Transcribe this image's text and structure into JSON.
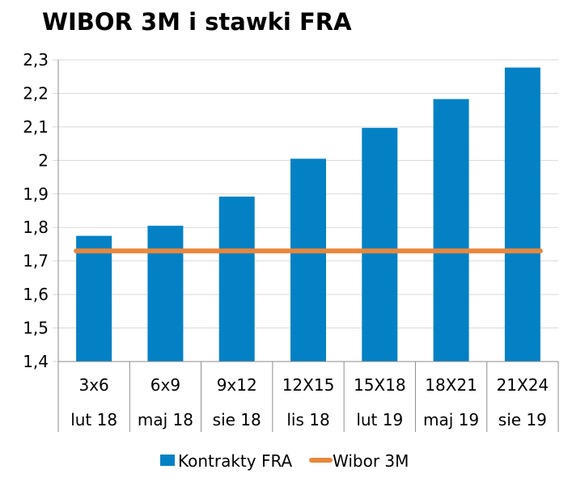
{
  "chart_data": {
    "type": "bar",
    "title": "WIBOR 3M i stawki FRA",
    "categories": [
      "3x6",
      "6x9",
      "9x12",
      "12X15",
      "15X18",
      "18X21",
      "21X24"
    ],
    "sub_categories": [
      "lut 18",
      "maj 18",
      "sie 18",
      "lis 18",
      "lut 19",
      "maj 19",
      "sie 19"
    ],
    "series": [
      {
        "name": "Kontrakty FRA",
        "kind": "bar",
        "color": "#0481C4",
        "values": [
          1.775,
          1.805,
          1.892,
          2.005,
          2.097,
          2.183,
          2.277
        ]
      },
      {
        "name": "Wibor 3M",
        "kind": "line",
        "color": "#E9873B",
        "values": [
          1.73,
          1.73,
          1.73,
          1.73,
          1.73,
          1.73,
          1.73
        ]
      }
    ],
    "ylim": [
      1.4,
      2.3
    ],
    "yticks": [
      "1,4",
      "1,5",
      "1,6",
      "1,7",
      "1,8",
      "1,9",
      "2",
      "2,1",
      "2,2",
      "2,3"
    ],
    "grid": true,
    "legend": "bottom"
  }
}
